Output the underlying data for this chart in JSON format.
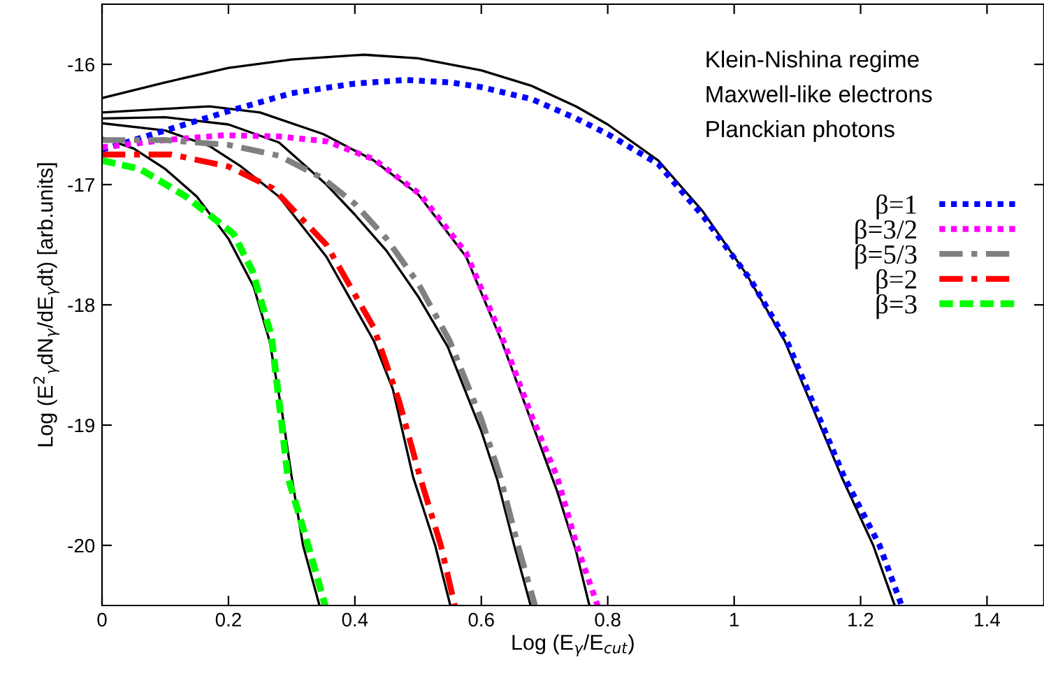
{
  "chart_data": {
    "type": "line",
    "xlabel": "Log (E$_{γ}$/E$_{cut}$)",
    "ylabel": "Log (E$^{2}$$_{γ}$dN$_{γ}$/dE$_{γ}$dt) [arb.units]",
    "xlim": [
      0,
      1.49
    ],
    "ylim": [
      -20.5,
      -15.5
    ],
    "xticks": [
      0,
      0.2,
      0.4,
      0.6,
      0.8,
      1,
      1.2,
      1.4
    ],
    "yticks": [
      -20,
      -19,
      -18,
      -17,
      -16
    ],
    "grid": false,
    "legend": "right",
    "marker": "none",
    "annotations": [
      "Klein-Nishina regime",
      "Maxwell-like electrons",
      "Planckian photons"
    ],
    "series": [
      {
        "color": "#000000",
        "line_style": "solid",
        "x": [
          0,
          0.1,
          0.2,
          0.3,
          0.414,
          0.5,
          0.6,
          0.68,
          0.75,
          0.8,
          0.88,
          0.95,
          1.02,
          1.08,
          1.17,
          1.22,
          1.254
        ],
        "values": [
          -16.28,
          -16.15,
          -16.03,
          -15.96,
          -15.92,
          -15.95,
          -16.05,
          -16.18,
          -16.35,
          -16.5,
          -16.8,
          -17.22,
          -17.75,
          -18.3,
          -19.43,
          -20.0,
          -20.5
        ]
      },
      {
        "color": "#000000",
        "line_style": "solid",
        "x": [
          0,
          0.1,
          0.17,
          0.25,
          0.35,
          0.43,
          0.5,
          0.576,
          0.632,
          0.68,
          0.72,
          0.75,
          0.771
        ],
        "values": [
          -16.4,
          -16.37,
          -16.35,
          -16.4,
          -16.58,
          -16.8,
          -17.08,
          -17.6,
          -18.3,
          -18.98,
          -19.55,
          -20.05,
          -20.5
        ]
      },
      {
        "color": "#000000",
        "line_style": "solid",
        "x": [
          0,
          0.1,
          0.2,
          0.28,
          0.355,
          0.4,
          0.45,
          0.5,
          0.547,
          0.6,
          0.625,
          0.652,
          0.678
        ],
        "values": [
          -16.45,
          -16.44,
          -16.5,
          -16.65,
          -17.0,
          -17.25,
          -17.55,
          -17.93,
          -18.35,
          -19.05,
          -19.45,
          -20.0,
          -20.5
        ]
      },
      {
        "color": "#000000",
        "line_style": "solid",
        "x": [
          0,
          0.1,
          0.17,
          0.22,
          0.28,
          0.355,
          0.43,
          0.46,
          0.492,
          0.527,
          0.551
        ],
        "values": [
          -16.49,
          -16.55,
          -16.68,
          -16.85,
          -17.1,
          -17.6,
          -18.3,
          -18.7,
          -19.43,
          -20.0,
          -20.5
        ]
      },
      {
        "color": "#000000",
        "line_style": "solid",
        "x": [
          0,
          0.05,
          0.1,
          0.15,
          0.2,
          0.24,
          0.265,
          0.285,
          0.3,
          0.318,
          0.344
        ],
        "values": [
          -16.61,
          -16.7,
          -16.87,
          -17.1,
          -17.45,
          -17.85,
          -18.3,
          -18.9,
          -19.43,
          -20.0,
          -20.5
        ]
      },
      {
        "name": "β=1",
        "color": "#0000ff",
        "line_style": "dotted",
        "x": [
          0,
          0.1,
          0.2,
          0.3,
          0.4,
          0.48,
          0.55,
          0.6,
          0.68,
          0.75,
          0.8,
          0.88,
          0.952,
          1.027,
          1.085,
          1.174,
          1.23,
          1.265
        ],
        "values": [
          -16.71,
          -16.55,
          -16.39,
          -16.24,
          -16.16,
          -16.13,
          -16.15,
          -16.19,
          -16.29,
          -16.45,
          -16.58,
          -16.83,
          -17.27,
          -17.8,
          -18.32,
          -19.43,
          -20.0,
          -20.5
        ]
      },
      {
        "name": "β=3/2",
        "color": "#ff00ff",
        "line_style": "dotted",
        "x": [
          0,
          0.1,
          0.193,
          0.28,
          0.355,
          0.43,
          0.503,
          0.576,
          0.632,
          0.68,
          0.72,
          0.751,
          0.784
        ],
        "values": [
          -16.69,
          -16.63,
          -16.59,
          -16.6,
          -16.64,
          -16.79,
          -17.08,
          -17.57,
          -18.26,
          -18.93,
          -19.43,
          -20.0,
          -20.5
        ]
      },
      {
        "name": "β=5/3",
        "color": "#808080",
        "line_style": "dashdot",
        "x": [
          0,
          0.1,
          0.2,
          0.28,
          0.35,
          0.4,
          0.45,
          0.5,
          0.55,
          0.6,
          0.63,
          0.658,
          0.685
        ],
        "values": [
          -16.63,
          -16.63,
          -16.67,
          -16.76,
          -16.95,
          -17.16,
          -17.45,
          -17.82,
          -18.3,
          -18.95,
          -19.43,
          -20.0,
          -20.5
        ]
      },
      {
        "name": "β=2",
        "color": "#ff0000",
        "line_style": "dashdot",
        "x": [
          0,
          0.11,
          0.2,
          0.27,
          0.355,
          0.43,
          0.47,
          0.503,
          0.536,
          0.558
        ],
        "values": [
          -16.75,
          -16.75,
          -16.85,
          -17.03,
          -17.5,
          -18.19,
          -18.8,
          -19.43,
          -20.0,
          -20.5
        ]
      },
      {
        "name": "β=3",
        "color": "#00ff00",
        "line_style": "dashed",
        "x": [
          0,
          0.06,
          0.133,
          0.208,
          0.238,
          0.268,
          0.28,
          0.294,
          0.326,
          0.353
        ],
        "values": [
          -16.8,
          -16.87,
          -17.1,
          -17.41,
          -17.72,
          -18.26,
          -18.8,
          -19.43,
          -20.0,
          -20.5
        ]
      }
    ]
  }
}
